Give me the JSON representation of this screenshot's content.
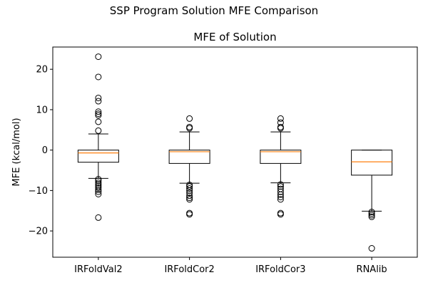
{
  "suptitle": "SSP Program Solution MFE Comparison",
  "chart_data": {
    "type": "boxplot",
    "title": "MFE of Solution",
    "xlabel": "",
    "ylabel": "MFE (kcal/mol)",
    "ylim": [
      -26.5,
      25.5
    ],
    "yticks": [
      -20,
      -10,
      0,
      10,
      20
    ],
    "ytick_labels": [
      "−20",
      "−10",
      "0",
      "10",
      "20"
    ],
    "grid": false,
    "legend": "none",
    "colors": {
      "box": "#000000",
      "median": "#ff7f0e",
      "flier": "#000000"
    },
    "categories": [
      "IRFoldVal2",
      "IRFoldCor2",
      "IRFoldCor3",
      "RNAlib"
    ],
    "boxes": [
      {
        "label": "IRFoldVal2",
        "whisker_low": -7.0,
        "q1": -3.0,
        "median": -0.7,
        "q3": 0.0,
        "whisker_high": 4.0,
        "fliers": [
          23.1,
          18.1,
          12.9,
          12.1,
          9.5,
          9.0,
          8.6,
          7.0,
          4.8,
          -7.2,
          -7.6,
          -8.1,
          -8.5,
          -8.9,
          -9.3,
          -9.8,
          -10.3,
          -10.9,
          -16.7
        ]
      },
      {
        "label": "IRFoldCor2",
        "whisker_low": -8.2,
        "q1": -3.3,
        "median": -0.4,
        "q3": 0.0,
        "whisker_high": 4.5,
        "fliers": [
          7.8,
          5.7,
          5.4,
          -8.6,
          -9.0,
          -9.5,
          -10.0,
          -10.6,
          -11.3,
          -11.8,
          -12.2,
          -15.6,
          -15.9
        ]
      },
      {
        "label": "IRFoldCor3",
        "whisker_low": -8.1,
        "q1": -3.3,
        "median": -0.4,
        "q3": 0.0,
        "whisker_high": 4.5,
        "fliers": [
          7.8,
          6.8,
          5.7,
          5.4,
          -8.5,
          -9.0,
          -9.6,
          -10.3,
          -11.0,
          -11.6,
          -12.2,
          -15.6,
          -15.9
        ]
      },
      {
        "label": "RNAlib",
        "whisker_low": -15.1,
        "q1": -6.2,
        "median": -2.9,
        "q3": 0.0,
        "whisker_high": 0.0,
        "fliers": [
          -15.3,
          -15.7,
          -16.1,
          -16.5,
          -24.3
        ]
      }
    ]
  }
}
